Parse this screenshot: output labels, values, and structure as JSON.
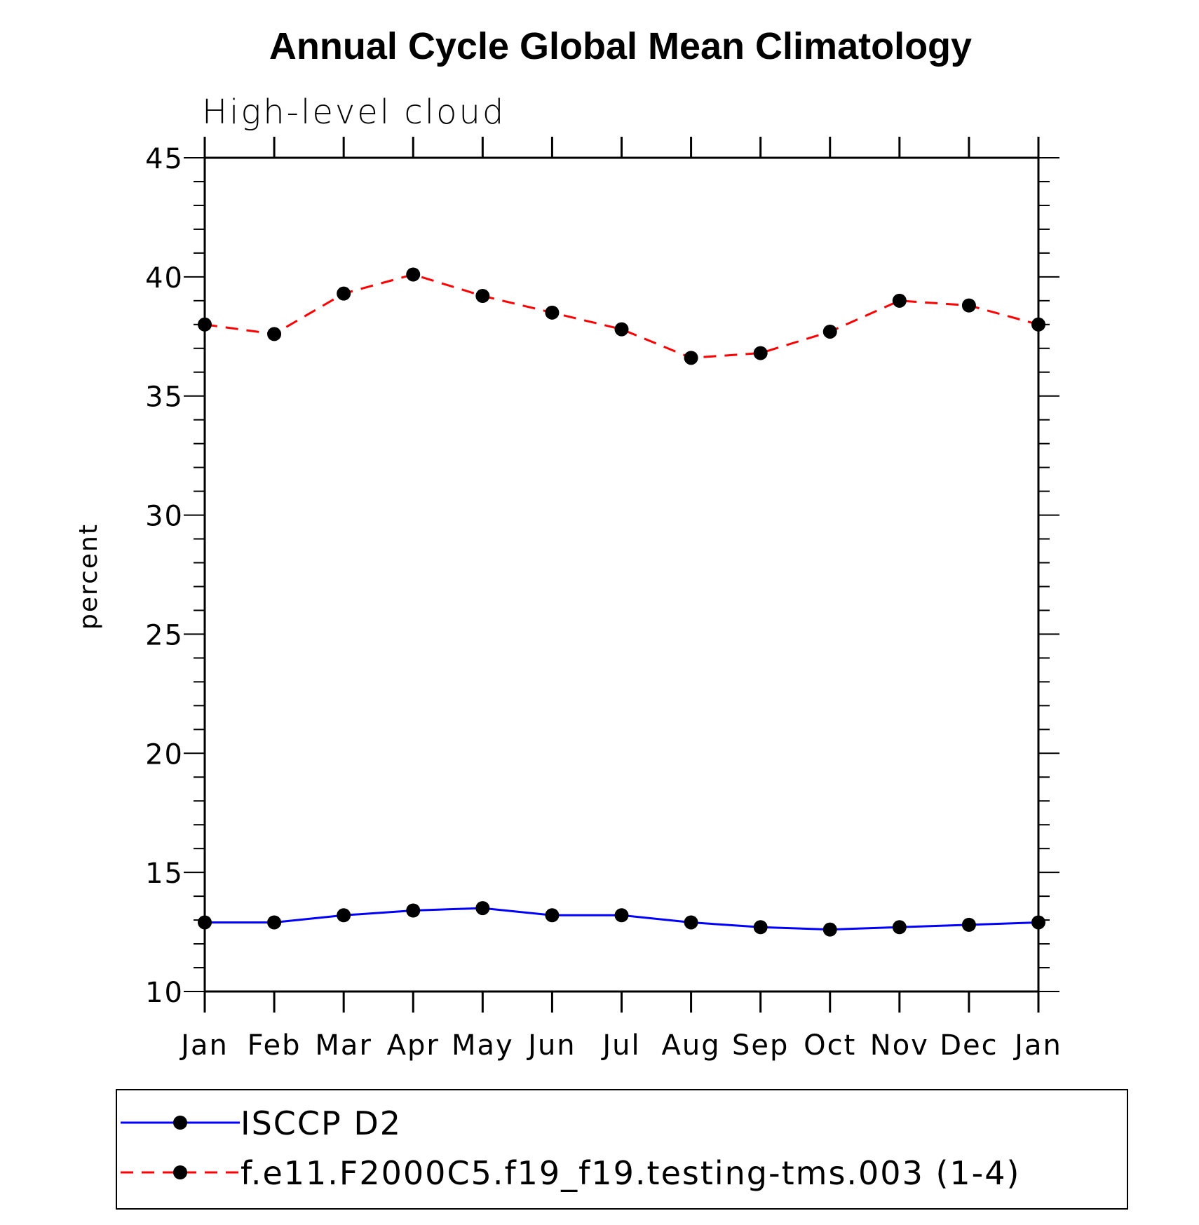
{
  "chart_data": {
    "type": "line",
    "title": "Annual Cycle Global Mean Climatology",
    "subtitle": "High-level cloud",
    "xlabel": "",
    "ylabel": "percent",
    "categories": [
      "Jan",
      "Feb",
      "Mar",
      "Apr",
      "May",
      "Jun",
      "Jul",
      "Aug",
      "Sep",
      "Oct",
      "Nov",
      "Dec",
      "Jan"
    ],
    "ylim": [
      10,
      45
    ],
    "yticks": [
      "10",
      "15",
      "20",
      "25",
      "30",
      "35",
      "40",
      "45"
    ],
    "grid": false,
    "legend_position": "bottom",
    "series": [
      {
        "name": "ISCCP D2",
        "color": "#0000ff",
        "line_style": "solid",
        "marker": "filled-circle",
        "values": [
          12.9,
          12.9,
          13.2,
          13.4,
          13.5,
          13.2,
          13.2,
          12.9,
          12.7,
          12.6,
          12.7,
          12.8,
          12.9
        ]
      },
      {
        "name": "f.e11.F2000C5.f19_f19.testing-tms.003 (1-4)",
        "color": "#ff0000",
        "line_style": "dashed",
        "marker": "filled-circle",
        "values": [
          38.0,
          37.6,
          39.3,
          40.1,
          39.2,
          38.5,
          37.8,
          36.6,
          36.8,
          37.7,
          39.0,
          38.8,
          38.0
        ]
      }
    ]
  }
}
